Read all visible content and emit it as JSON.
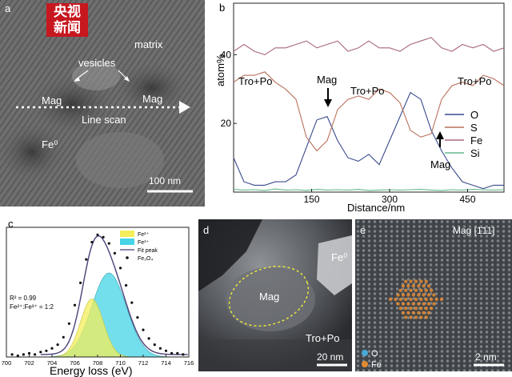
{
  "logo": {
    "line1": "央视",
    "line2": "新闻"
  },
  "panel_a": {
    "letter": "a",
    "labels": {
      "matrix": "matrix",
      "vesicles": "vesicles",
      "mag_left": "Mag",
      "mag_right": "Mag",
      "line_scan": "Line scan",
      "fe0": "Fe⁰"
    },
    "scale_bar": "100 nm"
  },
  "panel_b": {
    "letter": "b",
    "annotations": {
      "tro_po_left": "Tro+Po",
      "tro_po_mid": "Tro+Po",
      "tro_po_right": "Tro+Po",
      "mag_top": "Mag",
      "mag_bottom": "Mag"
    },
    "legend": [
      "O",
      "S",
      "Fe",
      "Si"
    ],
    "colors": {
      "O": "#3a4a8c",
      "S": "#b9705a",
      "Fe": "#a8667e",
      "Si": "#63b98a"
    }
  },
  "panel_c": {
    "letter": "c",
    "legend": [
      "Fe²⁺",
      "Fe³⁺",
      "Fit peak",
      "Fe₃O₄"
    ],
    "stats": {
      "r2": "R² = 0.99",
      "ratio": "Fe²⁺:Fe³⁺ = 1:2"
    },
    "colors": {
      "fe2": "#f3ee5a",
      "fe3": "#46d4e6",
      "fit": "#4a3f78",
      "points": "#111111"
    }
  },
  "panel_d": {
    "letter": "d",
    "labels": {
      "mag": "Mag",
      "fe0": "Fe⁰",
      "tro_po": "Tro+Po"
    },
    "scale_bar": "20 nm"
  },
  "panel_e": {
    "letter": "e",
    "zone": "Mag [1̄11]",
    "legend": [
      "O",
      "Fe"
    ],
    "colors": {
      "O": "#49a9d6",
      "Fe": "#e08a32"
    },
    "scale_bar": "2 nm"
  },
  "chart_data": [
    {
      "type": "line",
      "panel": "b",
      "xlabel": "Distance/nm",
      "ylabel": "atom%",
      "xlim": [
        0,
        520
      ],
      "ylim": [
        0,
        55
      ],
      "x_ticks": [
        150,
        300,
        450
      ],
      "y_ticks": [
        20,
        40
      ],
      "legend_position": "bottom-right",
      "grid": false,
      "x": [
        0,
        20,
        40,
        60,
        80,
        100,
        120,
        140,
        160,
        180,
        200,
        220,
        240,
        260,
        280,
        300,
        320,
        340,
        360,
        380,
        400,
        420,
        440,
        460,
        480,
        500,
        520
      ],
      "series": [
        {
          "name": "O",
          "values": [
            10,
            3,
            2,
            2,
            3,
            3,
            5,
            13,
            21,
            22,
            15,
            10,
            9,
            11,
            8,
            15,
            22,
            29,
            27,
            18,
            12,
            7,
            3,
            2,
            1,
            2,
            2
          ]
        },
        {
          "name": "S",
          "values": [
            32,
            34,
            34,
            35,
            32,
            30,
            27,
            16,
            12,
            15,
            24,
            27,
            28,
            27,
            30,
            29,
            26,
            18,
            16,
            17,
            27,
            31,
            32,
            31,
            34,
            33,
            31
          ]
        },
        {
          "name": "Fe",
          "values": [
            41,
            43,
            41,
            40,
            42,
            42,
            43,
            44,
            42,
            43,
            44,
            41,
            42,
            44,
            42,
            42,
            41,
            43,
            44,
            45,
            42,
            41,
            43,
            42,
            43,
            41,
            42
          ]
        },
        {
          "name": "Si",
          "values": [
            0.8,
            0.6,
            0.7,
            0.5,
            0.9,
            0.6,
            0.7,
            0.5,
            0.8,
            0.6,
            0.7,
            0.6,
            0.8,
            0.5,
            0.6,
            0.7,
            0.6,
            0.7,
            0.8,
            0.6,
            0.5,
            0.7,
            0.6,
            0.8,
            0.7,
            0.6,
            0.7
          ]
        }
      ]
    },
    {
      "type": "area",
      "panel": "c",
      "xlabel": "Energy loss (eV)",
      "ylabel": "",
      "xlim": [
        700,
        716
      ],
      "ylim": [
        0,
        1.05
      ],
      "x_ticks": [
        700,
        702,
        704,
        706,
        708,
        710,
        712,
        714,
        716
      ],
      "legend_position": "top-right",
      "series": [
        {
          "name": "Fe²⁺",
          "peak_center": 707.5,
          "peak_height": 0.47,
          "peak_width": 1.0
        },
        {
          "name": "Fe³⁺",
          "peak_center": 709.0,
          "peak_height": 0.68,
          "peak_width": 1.5
        },
        {
          "name": "Fit peak"
        },
        {
          "name": "Fe₃O₄",
          "x": [
            700.5,
            701,
            701.5,
            702,
            702.5,
            703,
            703.5,
            704,
            704.5,
            705,
            705.5,
            706,
            706.5,
            707,
            707.5,
            708,
            708.5,
            709,
            709.5,
            710,
            710.5,
            711,
            711.5,
            712,
            712.5,
            713,
            713.5,
            714,
            714.5,
            715,
            715.5
          ],
          "values": [
            0.02,
            0.01,
            0.02,
            0.03,
            0.02,
            0.04,
            0.05,
            0.07,
            0.1,
            0.16,
            0.27,
            0.42,
            0.6,
            0.79,
            0.93,
            0.99,
            0.97,
            0.92,
            0.84,
            0.72,
            0.58,
            0.44,
            0.32,
            0.22,
            0.15,
            0.1,
            0.07,
            0.05,
            0.03,
            0.03,
            0.02
          ]
        }
      ]
    }
  ]
}
